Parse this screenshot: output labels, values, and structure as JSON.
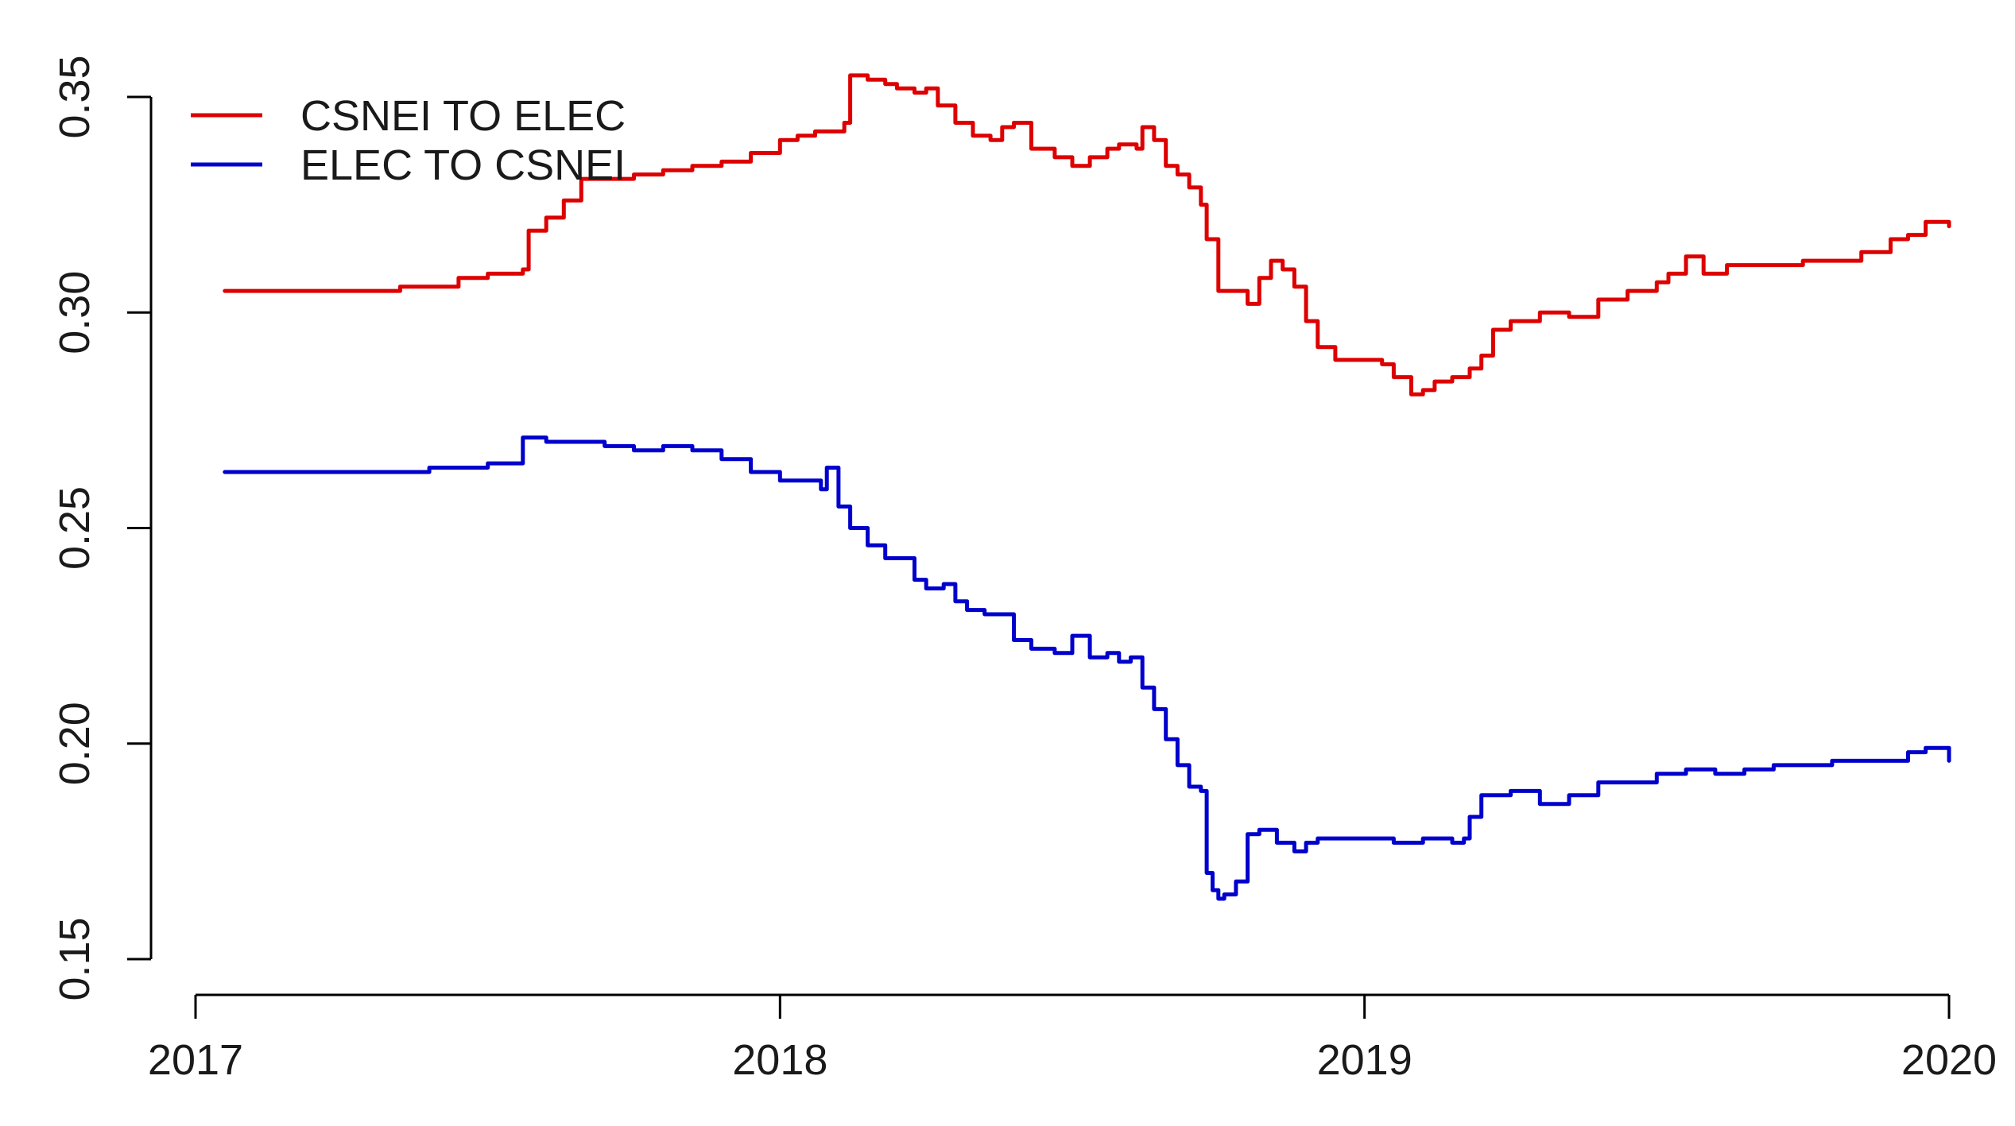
{
  "chart_data": {
    "type": "line",
    "title": "",
    "xlabel": "",
    "ylabel": "",
    "xlim": [
      2017,
      2020
    ],
    "ylim": [
      0.15,
      0.35
    ],
    "x_ticks": [
      {
        "value": 2017,
        "label": "2017"
      },
      {
        "value": 2018,
        "label": "2018"
      },
      {
        "value": 2019,
        "label": "2019"
      },
      {
        "value": 2020,
        "label": "2020"
      }
    ],
    "y_ticks": [
      {
        "value": 0.15,
        "label": "0.15"
      },
      {
        "value": 0.2,
        "label": "0.20"
      },
      {
        "value": 0.25,
        "label": "0.25"
      },
      {
        "value": 0.3,
        "label": "0.30"
      },
      {
        "value": 0.35,
        "label": "0.35"
      }
    ],
    "grid": false,
    "legend": {
      "position": "top-left",
      "frame": false
    },
    "series": [
      {
        "name": "CSNEI TO ELEC",
        "color": "#dd0000",
        "x": [
          2017.05,
          2017.1,
          2017.15,
          2017.25,
          2017.35,
          2017.4,
          2017.45,
          2017.5,
          2017.55,
          2017.56,
          2017.57,
          2017.6,
          2017.63,
          2017.66,
          2017.7,
          2017.75,
          2017.8,
          2017.85,
          2017.9,
          2017.95,
          2018.0,
          2018.03,
          2018.06,
          2018.09,
          2018.11,
          2018.12,
          2018.15,
          2018.18,
          2018.2,
          2018.23,
          2018.25,
          2018.27,
          2018.3,
          2018.33,
          2018.36,
          2018.38,
          2018.4,
          2018.43,
          2018.47,
          2018.5,
          2018.53,
          2018.56,
          2018.58,
          2018.6,
          2018.61,
          2018.62,
          2018.64,
          2018.66,
          2018.68,
          2018.7,
          2018.72,
          2018.73,
          2018.75,
          2018.78,
          2018.8,
          2018.82,
          2018.84,
          2018.86,
          2018.88,
          2018.9,
          2018.92,
          2018.95,
          2019.0,
          2019.03,
          2019.05,
          2019.08,
          2019.1,
          2019.12,
          2019.15,
          2019.18,
          2019.2,
          2019.22,
          2019.25,
          2019.3,
          2019.35,
          2019.4,
          2019.45,
          2019.5,
          2019.52,
          2019.55,
          2019.58,
          2019.62,
          2019.65,
          2019.7,
          2019.75,
          2019.8,
          2019.85,
          2019.9,
          2019.93,
          2019.96,
          2020.0
        ],
        "y": [
          0.305,
          0.305,
          0.305,
          0.305,
          0.306,
          0.306,
          0.308,
          0.309,
          0.309,
          0.31,
          0.319,
          0.322,
          0.326,
          0.331,
          0.331,
          0.332,
          0.333,
          0.334,
          0.335,
          0.337,
          0.34,
          0.341,
          0.342,
          0.342,
          0.344,
          0.355,
          0.354,
          0.353,
          0.352,
          0.351,
          0.352,
          0.348,
          0.344,
          0.341,
          0.34,
          0.343,
          0.344,
          0.338,
          0.336,
          0.334,
          0.336,
          0.338,
          0.339,
          0.339,
          0.338,
          0.343,
          0.34,
          0.334,
          0.332,
          0.329,
          0.325,
          0.317,
          0.305,
          0.305,
          0.302,
          0.308,
          0.312,
          0.31,
          0.306,
          0.298,
          0.292,
          0.289,
          0.289,
          0.288,
          0.285,
          0.281,
          0.282,
          0.284,
          0.285,
          0.287,
          0.29,
          0.296,
          0.298,
          0.3,
          0.299,
          0.303,
          0.305,
          0.307,
          0.309,
          0.313,
          0.309,
          0.311,
          0.311,
          0.311,
          0.312,
          0.312,
          0.314,
          0.317,
          0.318,
          0.321,
          0.32
        ]
      },
      {
        "name": "ELEC TO CSNEI",
        "color": "#0000cc",
        "x": [
          2017.05,
          2017.1,
          2017.2,
          2017.3,
          2017.4,
          2017.5,
          2017.55,
          2017.56,
          2017.6,
          2017.65,
          2017.7,
          2017.75,
          2017.8,
          2017.85,
          2017.9,
          2017.95,
          2018.0,
          2018.05,
          2018.07,
          2018.08,
          2018.1,
          2018.12,
          2018.15,
          2018.18,
          2018.2,
          2018.23,
          2018.25,
          2018.28,
          2018.3,
          2018.32,
          2018.35,
          2018.38,
          2018.4,
          2018.43,
          2018.47,
          2018.5,
          2018.53,
          2018.56,
          2018.58,
          2018.6,
          2018.62,
          2018.64,
          2018.66,
          2018.68,
          2018.7,
          2018.72,
          2018.73,
          2018.74,
          2018.75,
          2018.76,
          2018.78,
          2018.8,
          2018.82,
          2018.85,
          2018.88,
          2018.9,
          2018.92,
          2018.95,
          2019.0,
          2019.05,
          2019.1,
          2019.15,
          2019.17,
          2019.18,
          2019.2,
          2019.25,
          2019.28,
          2019.3,
          2019.35,
          2019.4,
          2019.45,
          2019.5,
          2019.52,
          2019.55,
          2019.6,
          2019.65,
          2019.7,
          2019.75,
          2019.8,
          2019.85,
          2019.9,
          2019.93,
          2019.96,
          2020.0
        ],
        "y": [
          0.263,
          0.263,
          0.263,
          0.263,
          0.264,
          0.265,
          0.265,
          0.271,
          0.27,
          0.27,
          0.269,
          0.268,
          0.269,
          0.268,
          0.266,
          0.263,
          0.261,
          0.261,
          0.259,
          0.264,
          0.255,
          0.25,
          0.246,
          0.243,
          0.243,
          0.238,
          0.236,
          0.237,
          0.233,
          0.231,
          0.23,
          0.23,
          0.224,
          0.222,
          0.221,
          0.225,
          0.22,
          0.221,
          0.219,
          0.22,
          0.213,
          0.208,
          0.201,
          0.195,
          0.19,
          0.189,
          0.17,
          0.166,
          0.164,
          0.165,
          0.168,
          0.179,
          0.18,
          0.177,
          0.175,
          0.177,
          0.178,
          0.178,
          0.178,
          0.177,
          0.178,
          0.177,
          0.178,
          0.183,
          0.188,
          0.189,
          0.189,
          0.186,
          0.188,
          0.191,
          0.191,
          0.193,
          0.193,
          0.194,
          0.193,
          0.194,
          0.195,
          0.195,
          0.196,
          0.196,
          0.196,
          0.198,
          0.199,
          0.196
        ]
      }
    ]
  }
}
